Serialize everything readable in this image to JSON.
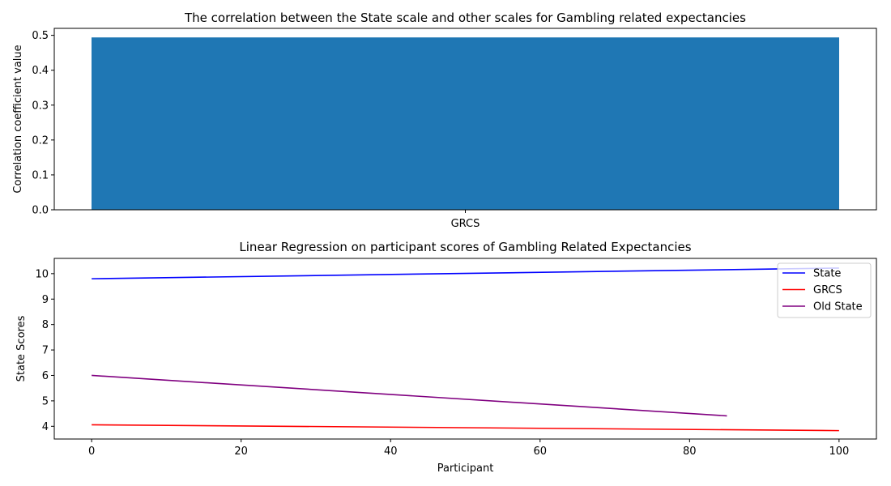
{
  "chart_data": [
    {
      "type": "bar",
      "title": "The correlation between the State scale and other scales for Gambling related expectancies",
      "xlabel": "",
      "ylabel": "Correlation coefficient value",
      "categories": [
        "GRCS"
      ],
      "values": [
        0.494
      ],
      "ylim": [
        0,
        0.52
      ],
      "yticks": [
        0.0,
        0.1,
        0.2,
        0.3,
        0.4,
        0.5
      ],
      "ytick_labels": [
        "0.0",
        "0.1",
        "0.2",
        "0.3",
        "0.4",
        "0.5"
      ],
      "bar_color": "#1f77b4",
      "grid": false
    },
    {
      "type": "line",
      "title": "Linear Regression on participant scores of Gambling Related Expectancies",
      "xlabel": "Participant",
      "ylabel": "State Scores",
      "xlim": [
        -5,
        105
      ],
      "ylim": [
        3.5,
        10.6
      ],
      "xticks": [
        0,
        20,
        40,
        60,
        80,
        100
      ],
      "yticks": [
        4,
        5,
        6,
        7,
        8,
        9,
        10
      ],
      "legend_position": "top-right",
      "grid": false,
      "series": [
        {
          "name": "State",
          "color": "#0000ff",
          "x": [
            0,
            100
          ],
          "y": [
            9.8,
            10.22
          ]
        },
        {
          "name": "GRCS",
          "color": "#ff0000",
          "x": [
            0,
            100
          ],
          "y": [
            4.06,
            3.83
          ]
        },
        {
          "name": "Old State",
          "color": "#800080",
          "x": [
            0,
            85
          ],
          "y": [
            6.0,
            4.41
          ]
        }
      ]
    }
  ]
}
